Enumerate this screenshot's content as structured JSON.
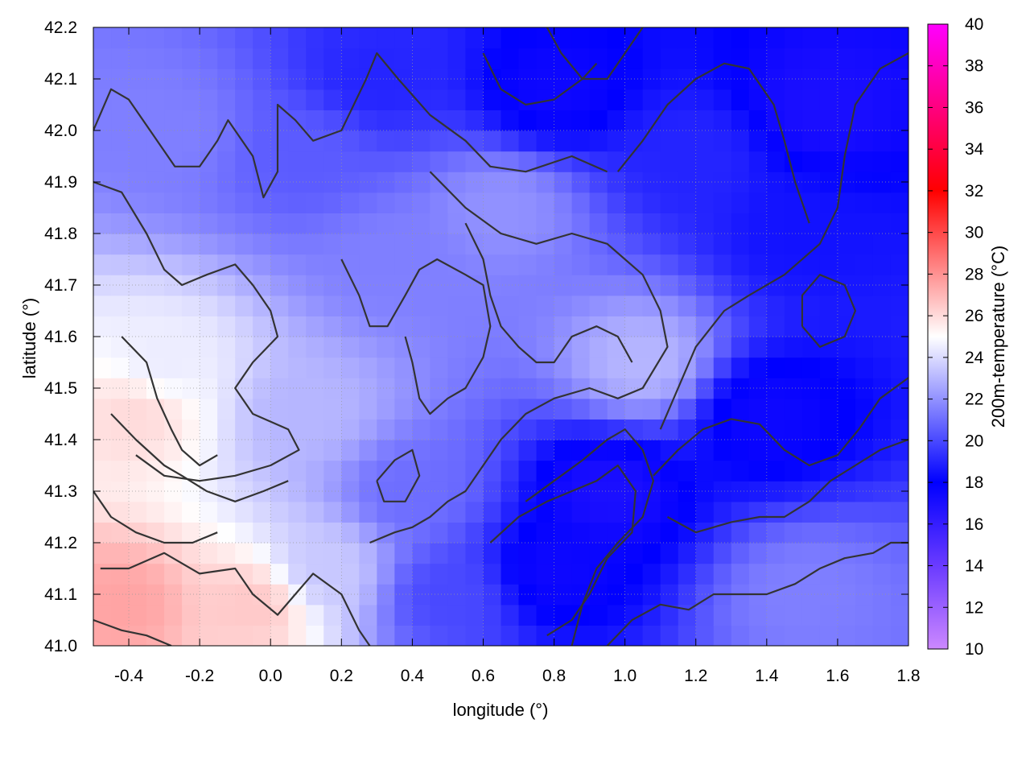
{
  "chart_data": {
    "type": "heatmap",
    "title": "",
    "xlabel": "longitude (°)",
    "ylabel": "latitude (°)",
    "colorbar_label": "200m-temperature (°C)",
    "xlim": [
      -0.5,
      1.8
    ],
    "ylim": [
      41.0,
      42.2
    ],
    "x_ticks": [
      -0.4,
      -0.2,
      0.0,
      0.2,
      0.4,
      0.6,
      0.8,
      1.0,
      1.2,
      1.4,
      1.6,
      1.8
    ],
    "x_tick_labels": [
      "-0.4",
      "-0.2",
      "0.0",
      "0.2",
      "0.4",
      "0.6",
      "0.8",
      "1.0",
      "1.2",
      "1.4",
      "1.6",
      "1.8"
    ],
    "y_ticks": [
      41.0,
      41.1,
      41.2,
      41.3,
      41.4,
      41.5,
      41.6,
      41.7,
      41.8,
      41.9,
      42.0,
      42.1,
      42.2
    ],
    "y_tick_labels": [
      "41.0",
      "41.1",
      "41.2",
      "41.3",
      "41.4",
      "41.5",
      "41.6",
      "41.7",
      "41.8",
      "41.9",
      "42.0",
      "42.1",
      "42.2"
    ],
    "colorbar": {
      "range": [
        10,
        40
      ],
      "ticks": [
        10,
        12,
        14,
        16,
        18,
        20,
        22,
        24,
        26,
        28,
        30,
        32,
        34,
        36,
        38,
        40
      ],
      "tick_labels": [
        "10",
        "12",
        "14",
        "16",
        "18",
        "20",
        "22",
        "24",
        "26",
        "28",
        "30",
        "32",
        "34",
        "36",
        "38",
        "40"
      ],
      "stops": [
        {
          "value": 10,
          "color": "#cc88ff"
        },
        {
          "value": 14,
          "color": "#6a3bff"
        },
        {
          "value": 18,
          "color": "#0000ff"
        },
        {
          "value": 25,
          "color": "#ffffff"
        },
        {
          "value": 32,
          "color": "#ff0000"
        },
        {
          "value": 40,
          "color": "#ff00ff"
        }
      ]
    },
    "grid": true,
    "contour_color": "#333333",
    "field_regions": [
      {
        "lon": -0.42,
        "lat": 41.08,
        "temp": 27.5
      },
      {
        "lon": -0.38,
        "lat": 41.45,
        "temp": 26.0
      },
      {
        "lon": -0.05,
        "lat": 41.08,
        "temp": 26.5
      },
      {
        "lon": -0.3,
        "lat": 41.55,
        "temp": 24.5
      },
      {
        "lon": 0.15,
        "lat": 41.15,
        "temp": 23.5
      },
      {
        "lon": 0.1,
        "lat": 41.45,
        "temp": 23.0
      },
      {
        "lon": 1.05,
        "lat": 41.55,
        "temp": 23.0
      },
      {
        "lon": 0.4,
        "lat": 41.3,
        "temp": 21.0
      },
      {
        "lon": 0.35,
        "lat": 41.75,
        "temp": 21.5
      },
      {
        "lon": 0.65,
        "lat": 41.85,
        "temp": 22.0
      },
      {
        "lon": -0.3,
        "lat": 42.0,
        "temp": 21.5
      },
      {
        "lon": 0.1,
        "lat": 41.95,
        "temp": 20.5
      },
      {
        "lon": 1.5,
        "lat": 41.1,
        "temp": 21.5
      },
      {
        "lon": 0.5,
        "lat": 41.1,
        "temp": 20.0
      },
      {
        "lon": 0.8,
        "lat": 41.15,
        "temp": 17.5
      },
      {
        "lon": 0.95,
        "lat": 41.3,
        "temp": 17.0
      },
      {
        "lon": 1.4,
        "lat": 41.45,
        "temp": 17.5
      },
      {
        "lon": 1.5,
        "lat": 41.8,
        "temp": 18.5
      },
      {
        "lon": 1.55,
        "lat": 42.05,
        "temp": 17.0
      },
      {
        "lon": 0.8,
        "lat": 42.08,
        "temp": 17.5
      },
      {
        "lon": 0.3,
        "lat": 42.1,
        "temp": 19.0
      },
      {
        "lon": 1.2,
        "lat": 41.95,
        "temp": 19.0
      }
    ],
    "contours": [
      [
        [
          -0.5,
          42.0
        ],
        [
          -0.45,
          42.08
        ],
        [
          -0.4,
          42.06
        ],
        [
          -0.33,
          41.99
        ],
        [
          -0.27,
          41.93
        ],
        [
          -0.2,
          41.93
        ],
        [
          -0.15,
          41.98
        ],
        [
          -0.12,
          42.02
        ],
        [
          -0.05,
          41.95
        ],
        [
          -0.02,
          41.87
        ],
        [
          0.02,
          41.92
        ],
        [
          0.02,
          42.05
        ],
        [
          0.07,
          42.02
        ],
        [
          0.12,
          41.98
        ],
        [
          0.2,
          42.0
        ],
        [
          0.27,
          42.1
        ],
        [
          0.3,
          42.15
        ],
        [
          0.36,
          42.1
        ],
        [
          0.45,
          42.03
        ],
        [
          0.55,
          41.98
        ],
        [
          0.62,
          41.93
        ],
        [
          0.72,
          41.92
        ],
        [
          0.85,
          41.95
        ],
        [
          0.95,
          41.92
        ]
      ],
      [
        [
          -0.5,
          41.9
        ],
        [
          -0.42,
          41.88
        ],
        [
          -0.35,
          41.8
        ],
        [
          -0.3,
          41.73
        ],
        [
          -0.25,
          41.7
        ],
        [
          -0.18,
          41.72
        ],
        [
          -0.1,
          41.74
        ],
        [
          -0.05,
          41.7
        ],
        [
          0.0,
          41.65
        ],
        [
          0.02,
          41.6
        ],
        [
          -0.05,
          41.55
        ],
        [
          -0.1,
          41.5
        ],
        [
          -0.05,
          41.45
        ],
        [
          0.05,
          41.42
        ],
        [
          0.08,
          41.38
        ],
        [
          0.0,
          41.35
        ],
        [
          -0.1,
          41.33
        ],
        [
          -0.2,
          41.32
        ],
        [
          -0.3,
          41.33
        ],
        [
          -0.38,
          41.37
        ]
      ],
      [
        [
          0.2,
          41.75
        ],
        [
          0.25,
          41.68
        ],
        [
          0.28,
          41.62
        ],
        [
          0.33,
          41.62
        ],
        [
          0.38,
          41.68
        ],
        [
          0.42,
          41.73
        ],
        [
          0.47,
          41.75
        ],
        [
          0.55,
          41.72
        ],
        [
          0.6,
          41.7
        ],
        [
          0.62,
          41.62
        ],
        [
          0.6,
          41.56
        ],
        [
          0.55,
          41.5
        ],
        [
          0.5,
          41.48
        ],
        [
          0.45,
          41.45
        ],
        [
          0.42,
          41.48
        ],
        [
          0.4,
          41.55
        ],
        [
          0.38,
          41.6
        ]
      ],
      [
        [
          0.45,
          41.92
        ],
        [
          0.55,
          41.85
        ],
        [
          0.65,
          41.8
        ],
        [
          0.75,
          41.78
        ],
        [
          0.85,
          41.8
        ],
        [
          0.95,
          41.78
        ],
        [
          1.05,
          41.72
        ],
        [
          1.1,
          41.65
        ],
        [
          1.12,
          41.58
        ],
        [
          1.05,
          41.5
        ],
        [
          0.98,
          41.48
        ],
        [
          0.9,
          41.5
        ],
        [
          0.8,
          41.48
        ],
        [
          0.72,
          41.45
        ],
        [
          0.65,
          41.4
        ],
        [
          0.6,
          41.35
        ],
        [
          0.55,
          41.3
        ],
        [
          0.5,
          41.28
        ],
        [
          0.45,
          41.25
        ],
        [
          0.4,
          41.23
        ],
        [
          0.35,
          41.22
        ],
        [
          0.28,
          41.2
        ]
      ],
      [
        [
          0.72,
          41.28
        ],
        [
          0.8,
          41.32
        ],
        [
          0.88,
          41.36
        ],
        [
          0.95,
          41.4
        ],
        [
          1.0,
          41.42
        ],
        [
          1.05,
          41.38
        ],
        [
          1.08,
          41.32
        ],
        [
          1.05,
          41.25
        ],
        [
          0.98,
          41.2
        ],
        [
          0.92,
          41.15
        ],
        [
          0.88,
          41.08
        ],
        [
          0.85,
          41.0
        ]
      ],
      [
        [
          0.62,
          41.2
        ],
        [
          0.7,
          41.25
        ],
        [
          0.78,
          41.28
        ],
        [
          0.85,
          41.3
        ],
        [
          0.92,
          41.32
        ],
        [
          0.98,
          41.35
        ],
        [
          1.03,
          41.3
        ],
        [
          1.02,
          41.22
        ],
        [
          0.95,
          41.17
        ],
        [
          0.9,
          41.1
        ],
        [
          0.85,
          41.05
        ],
        [
          0.78,
          41.02
        ]
      ],
      [
        [
          1.1,
          41.42
        ],
        [
          1.15,
          41.5
        ],
        [
          1.2,
          41.58
        ],
        [
          1.28,
          41.65
        ],
        [
          1.35,
          41.68
        ],
        [
          1.45,
          41.72
        ],
        [
          1.55,
          41.78
        ],
        [
          1.6,
          41.85
        ],
        [
          1.62,
          41.95
        ],
        [
          1.65,
          42.05
        ],
        [
          1.72,
          42.12
        ],
        [
          1.8,
          42.15
        ]
      ],
      [
        [
          1.08,
          41.33
        ],
        [
          1.15,
          41.38
        ],
        [
          1.22,
          41.42
        ],
        [
          1.3,
          41.44
        ],
        [
          1.38,
          41.43
        ],
        [
          1.45,
          41.38
        ],
        [
          1.52,
          41.35
        ],
        [
          1.6,
          41.37
        ],
        [
          1.66,
          41.42
        ],
        [
          1.72,
          41.48
        ],
        [
          1.8,
          41.52
        ]
      ],
      [
        [
          0.95,
          41.0
        ],
        [
          1.02,
          41.05
        ],
        [
          1.1,
          41.08
        ],
        [
          1.18,
          41.07
        ],
        [
          1.25,
          41.1
        ],
        [
          1.32,
          41.1
        ],
        [
          1.4,
          41.1
        ],
        [
          1.48,
          41.12
        ],
        [
          1.55,
          41.15
        ],
        [
          1.62,
          41.17
        ],
        [
          1.7,
          41.18
        ],
        [
          1.75,
          41.2
        ],
        [
          1.8,
          41.2
        ]
      ],
      [
        [
          1.12,
          41.25
        ],
        [
          1.2,
          41.22
        ],
        [
          1.3,
          41.24
        ],
        [
          1.38,
          41.25
        ],
        [
          1.45,
          41.25
        ],
        [
          1.52,
          41.28
        ],
        [
          1.58,
          41.32
        ],
        [
          1.65,
          41.35
        ],
        [
          1.72,
          41.38
        ],
        [
          1.8,
          41.4
        ]
      ],
      [
        [
          0.98,
          41.92
        ],
        [
          1.05,
          41.98
        ],
        [
          1.12,
          42.05
        ],
        [
          1.2,
          42.1
        ],
        [
          1.28,
          42.13
        ],
        [
          1.35,
          42.12
        ],
        [
          1.42,
          42.05
        ],
        [
          1.45,
          41.98
        ],
        [
          1.48,
          41.9
        ],
        [
          1.52,
          41.82
        ]
      ],
      [
        [
          0.3,
          41.32
        ],
        [
          0.35,
          41.36
        ],
        [
          0.4,
          41.38
        ],
        [
          0.42,
          41.33
        ],
        [
          0.38,
          41.28
        ],
        [
          0.32,
          41.28
        ],
        [
          0.3,
          41.32
        ]
      ],
      [
        [
          -0.48,
          41.15
        ],
        [
          -0.4,
          41.15
        ],
        [
          -0.3,
          41.18
        ],
        [
          -0.2,
          41.14
        ],
        [
          -0.1,
          41.15
        ],
        [
          -0.05,
          41.1
        ],
        [
          0.02,
          41.06
        ],
        [
          0.07,
          41.1
        ],
        [
          0.12,
          41.14
        ],
        [
          0.2,
          41.1
        ],
        [
          0.25,
          41.03
        ],
        [
          0.28,
          41.0
        ]
      ],
      [
        [
          -0.5,
          41.05
        ],
        [
          -0.42,
          41.03
        ],
        [
          -0.35,
          41.02
        ],
        [
          -0.28,
          41.0
        ]
      ],
      [
        [
          -0.42,
          41.6
        ],
        [
          -0.35,
          41.55
        ],
        [
          -0.32,
          41.48
        ],
        [
          -0.28,
          41.42
        ],
        [
          -0.25,
          41.38
        ],
        [
          -0.2,
          41.35
        ],
        [
          -0.15,
          41.37
        ]
      ],
      [
        [
          -0.5,
          41.3
        ],
        [
          -0.45,
          41.25
        ],
        [
          -0.38,
          41.22
        ],
        [
          -0.3,
          41.2
        ],
        [
          -0.22,
          41.2
        ],
        [
          -0.15,
          41.22
        ]
      ],
      [
        [
          0.6,
          42.15
        ],
        [
          0.65,
          42.08
        ],
        [
          0.72,
          42.05
        ],
        [
          0.8,
          42.06
        ],
        [
          0.88,
          42.1
        ],
        [
          0.92,
          42.13
        ]
      ],
      [
        [
          0.78,
          42.2
        ],
        [
          0.82,
          42.15
        ],
        [
          0.88,
          42.1
        ],
        [
          0.95,
          42.1
        ],
        [
          1.0,
          42.15
        ],
        [
          1.05,
          42.2
        ]
      ],
      [
        [
          1.5,
          41.62
        ],
        [
          1.55,
          41.58
        ],
        [
          1.62,
          41.6
        ],
        [
          1.65,
          41.65
        ],
        [
          1.62,
          41.7
        ],
        [
          1.55,
          41.72
        ],
        [
          1.5,
          41.68
        ],
        [
          1.5,
          41.62
        ]
      ],
      [
        [
          -0.45,
          41.45
        ],
        [
          -0.38,
          41.4
        ],
        [
          -0.3,
          41.35
        ],
        [
          -0.25,
          41.33
        ],
        [
          -0.18,
          41.3
        ],
        [
          -0.1,
          41.28
        ],
        [
          -0.02,
          41.3
        ],
        [
          0.05,
          41.32
        ]
      ],
      [
        [
          0.55,
          41.82
        ],
        [
          0.6,
          41.75
        ],
        [
          0.62,
          41.68
        ],
        [
          0.65,
          41.62
        ],
        [
          0.7,
          41.58
        ],
        [
          0.75,
          41.55
        ],
        [
          0.8,
          41.55
        ],
        [
          0.85,
          41.6
        ],
        [
          0.92,
          41.62
        ],
        [
          0.98,
          41.6
        ],
        [
          1.02,
          41.55
        ]
      ]
    ]
  }
}
